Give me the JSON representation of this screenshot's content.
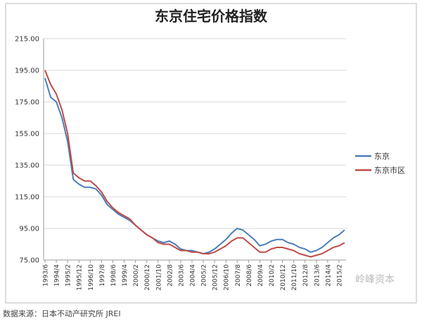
{
  "chart_data": {
    "type": "line",
    "title": "东京住宅价格指数",
    "source": "数据来源：日本不动产研究所 JREI",
    "watermark": "岭峰资本",
    "categories": [
      "1993/6",
      null,
      "1994/4",
      null,
      "1995/2",
      null,
      "1995/12",
      null,
      "1996/10",
      null,
      "1997/8",
      null,
      "1998/6",
      null,
      "1999/4",
      null,
      "2000/2",
      null,
      "2000/12",
      null,
      "2001/10",
      null,
      "2002/8",
      null,
      "2003/6",
      null,
      "2004/4",
      null,
      "2005/2",
      null,
      "2005/12",
      null,
      "2006/10",
      null,
      "2007/8",
      null,
      "2008/6",
      null,
      "2009/4",
      null,
      "2010/2",
      null,
      "2010/12",
      null,
      "2011/10",
      null,
      "2012/8",
      null,
      "2013/6",
      null,
      "2014/4",
      null,
      "2015/2",
      null
    ],
    "series": [
      {
        "name": "东京",
        "color": "#4a7ebb",
        "values": [
          190,
          178,
          175,
          165,
          150,
          126,
          123,
          121,
          121,
          120,
          116,
          110,
          107,
          104,
          102,
          100,
          97,
          94,
          91,
          89,
          87,
          86,
          87,
          85,
          82,
          81,
          81,
          80,
          79,
          80,
          82,
          85,
          88,
          92,
          95,
          94,
          91,
          88,
          84,
          85,
          87,
          88,
          88,
          86,
          85,
          83,
          82,
          80,
          81,
          83,
          86,
          89,
          91,
          94
        ]
      },
      {
        "name": "东京市区",
        "color": "#be4b48",
        "values": [
          195,
          186,
          180,
          170,
          155,
          130,
          127,
          125,
          125,
          122,
          118,
          112,
          108,
          105,
          103,
          101,
          97,
          94,
          91,
          89,
          86,
          85,
          85,
          83,
          81,
          81,
          80,
          80,
          79,
          79,
          80,
          82,
          84,
          87,
          89,
          89,
          86,
          83,
          80,
          80,
          82,
          83,
          83,
          82,
          81,
          79,
          78,
          77,
          78,
          79,
          81,
          83,
          84,
          86
        ]
      }
    ],
    "ylim": [
      75,
      215
    ],
    "yticks": [
      {
        "value": 75,
        "label": "75.00"
      },
      {
        "value": 95,
        "label": "95.00"
      },
      {
        "value": 115,
        "label": "115.00"
      },
      {
        "value": 135,
        "label": "135.00"
      },
      {
        "value": 155,
        "label": "155.00"
      },
      {
        "value": 175,
        "label": "175.00"
      },
      {
        "value": 195,
        "label": "195.00"
      },
      {
        "value": 215,
        "label": "215.00"
      }
    ],
    "grid": true
  }
}
